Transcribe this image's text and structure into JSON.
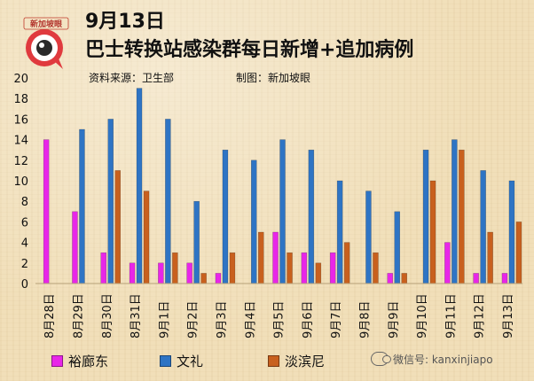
{
  "header": {
    "logo_text": "新加坡眼",
    "date": "9月13日",
    "title": "巴士转换站感染群每日新增+追加病例",
    "source": "资料来源：卫生部",
    "maker": "制图：新加坡眼"
  },
  "watermark": "微信号: kanxinjiapo",
  "colors": {
    "background": "#f1dfb9",
    "logo_red": "#e03a3e"
  },
  "chart_data": {
    "type": "bar",
    "categories": [
      "8月28日",
      "8月29日",
      "8月30日",
      "8月31日",
      "9月1日",
      "9月2日",
      "9月3日",
      "9月4日",
      "9月5日",
      "9月6日",
      "9月7日",
      "9月8日",
      "9月9日",
      "9月10日",
      "9月11日",
      "9月12日",
      "9月13日"
    ],
    "series": [
      {
        "name": "裕廊东",
        "color": "#e826e8",
        "values": [
          14,
          7,
          3,
          2,
          2,
          2,
          1,
          0,
          5,
          3,
          3,
          0,
          1,
          0,
          4,
          1,
          1
        ]
      },
      {
        "name": "文礼",
        "color": "#2e74c4",
        "values": [
          0,
          15,
          16,
          19,
          16,
          8,
          13,
          12,
          14,
          13,
          10,
          9,
          7,
          13,
          14,
          11,
          10
        ]
      },
      {
        "name": "淡滨尼",
        "color": "#c8601e",
        "values": [
          0,
          0,
          11,
          9,
          3,
          1,
          3,
          5,
          3,
          2,
          4,
          3,
          1,
          10,
          13,
          5,
          6
        ]
      }
    ],
    "yticks": [
      "0",
      "2",
      "4",
      "6",
      "8",
      "10",
      "12",
      "14",
      "16",
      "18",
      "20"
    ],
    "ylim": [
      0,
      20
    ],
    "grid": false,
    "legend": "bottom"
  }
}
